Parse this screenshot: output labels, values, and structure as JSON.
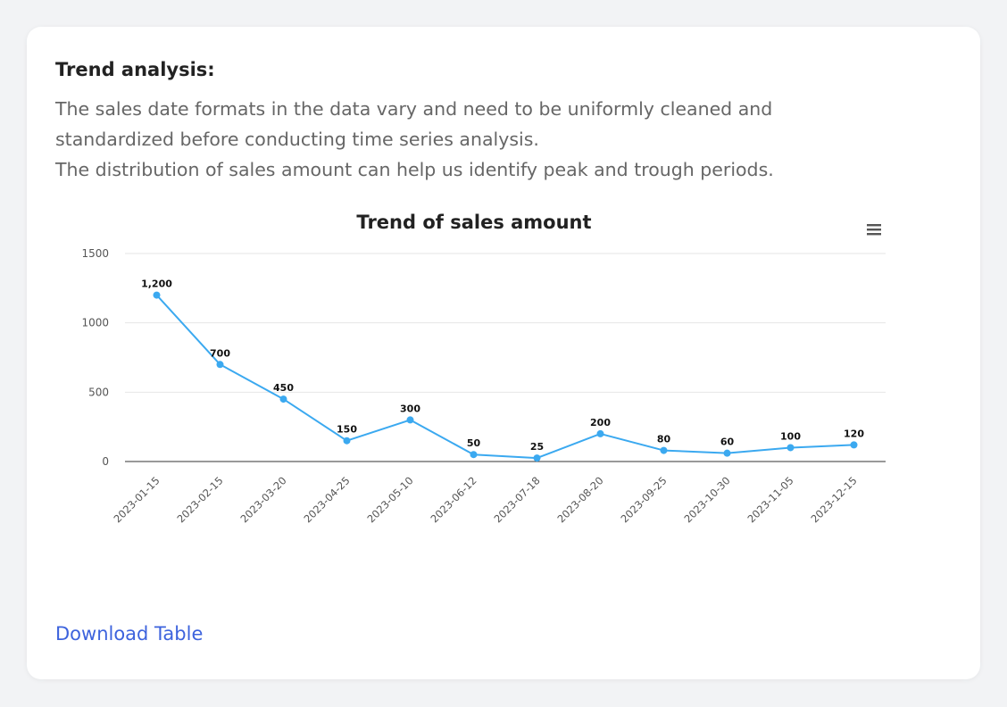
{
  "card": {
    "heading": "Trend analysis:",
    "paragraph_lines": [
      "The sales date formats in the data vary and need to be uniformly cleaned and",
      "standardized before conducting time series analysis.",
      "The distribution of sales amount can help us identify peak and trough periods."
    ],
    "download_label": "Download Table"
  },
  "colors": {
    "series": "#3ba9f0",
    "link": "#3d63dd",
    "grid": "#e6e6e6",
    "axis": "#333333"
  },
  "icons": {
    "chart_menu": "hamburger-menu-icon"
  },
  "chart_data": {
    "type": "line",
    "title": "Trend of sales amount",
    "xlabel": "",
    "ylabel": "",
    "x": [
      "2023-01-15",
      "2023-02-15",
      "2023-03-20",
      "2023-04-25",
      "2023-05-10",
      "2023-06-12",
      "2023-07-18",
      "2023-08-20",
      "2023-09-25",
      "2023-10-30",
      "2023-11-05",
      "2023-12-15"
    ],
    "series": [
      {
        "values": [
          1200,
          700,
          450,
          150,
          300,
          50,
          25,
          200,
          80,
          60,
          100,
          120
        ],
        "data_labels": [
          "1,200",
          "700",
          "450",
          "150",
          "300",
          "50",
          "25",
          "200",
          "80",
          "60",
          "100",
          "120"
        ]
      }
    ],
    "y_ticks": [
      0,
      500,
      1000,
      1500
    ],
    "ylim": [
      0,
      1500
    ],
    "grid": true,
    "legend": "none"
  }
}
